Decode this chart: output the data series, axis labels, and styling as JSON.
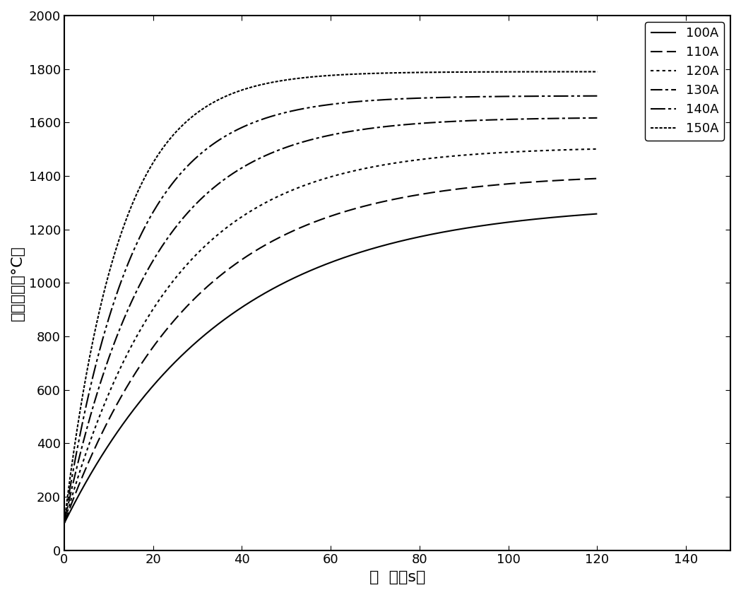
{
  "xlabel": "时  间（s）",
  "ylabel": "钛铝温度（°C）",
  "xlim": [
    0,
    150
  ],
  "ylim": [
    0,
    2000
  ],
  "xticks": [
    0,
    20,
    40,
    60,
    80,
    100,
    120,
    140
  ],
  "yticks": [
    0,
    200,
    400,
    600,
    800,
    1000,
    1200,
    1400,
    1600,
    1800,
    2000
  ],
  "curves": [
    {
      "label": "100A",
      "T_max": 1300,
      "k": 0.028,
      "linestyle": "-",
      "color": "#000000",
      "linewidth": 1.5
    },
    {
      "label": "110A",
      "T_max": 1410,
      "k": 0.035,
      "linestyle": "--",
      "color": "#000000",
      "linewidth": 1.5
    },
    {
      "label": "120A",
      "T_max": 1510,
      "k": 0.042,
      "linestyle": ":",
      "color": "#000000",
      "linewidth": 1.5
    },
    {
      "label": "130A",
      "T_max": 1620,
      "k": 0.052,
      "linestyle": "-.",
      "color": "#000000",
      "linewidth": 1.5
    },
    {
      "label": "140A",
      "T_max": 1700,
      "k": 0.065,
      "linestyle": "--",
      "color": "#000000",
      "linewidth": 1.5
    },
    {
      "label": "150A",
      "T_max": 1790,
      "k": 0.08,
      "linestyle": "-.",
      "color": "#000000",
      "linewidth": 1.5
    }
  ],
  "T0": 100,
  "background_color": "#ffffff",
  "legend_loc": "upper right",
  "fontsize_label": 16,
  "fontsize_tick": 13,
  "fontsize_legend": 13
}
